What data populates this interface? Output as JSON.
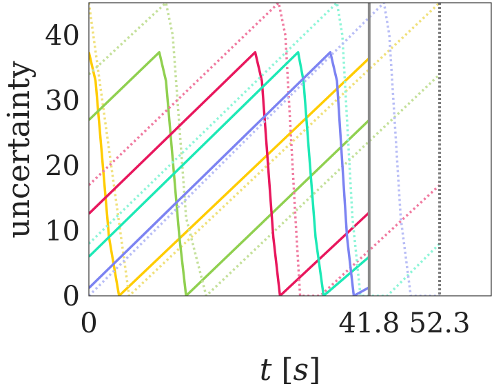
{
  "chart_data": {
    "type": "line",
    "title": "",
    "xlabel_var": "t",
    "xlabel_unit": "s",
    "ylabel": "uncertainty",
    "xlim": [
      0,
      60
    ],
    "ylim": [
      0,
      45
    ],
    "xticks": [
      {
        "value": 0,
        "label": "0"
      },
      {
        "value": 41.8,
        "label": "41.8"
      },
      {
        "value": 52.3,
        "label": "52.3"
      }
    ],
    "yticks": [
      {
        "value": 0,
        "label": "0"
      },
      {
        "value": 10,
        "label": "10"
      },
      {
        "value": 20,
        "label": "20"
      },
      {
        "value": 30,
        "label": "30"
      },
      {
        "value": 40,
        "label": "40"
      }
    ],
    "vlines": [
      {
        "x": 41.8,
        "style": "solid",
        "color": "#8a8a8a"
      },
      {
        "x": 52.3,
        "style": "dotted",
        "color": "#7a7a7a"
      }
    ],
    "series": [
      {
        "color": "#ffcc00",
        "style": "solid",
        "points": [
          [
            0,
            37.4
          ],
          [
            1,
            33
          ],
          [
            3,
            9
          ],
          [
            4.5,
            0
          ],
          [
            41.8,
            36.5
          ]
        ]
      },
      {
        "color": "#f0e07a",
        "style": "dotted",
        "points": [
          [
            0,
            45
          ],
          [
            6,
            0
          ],
          [
            52.3,
            45
          ]
        ]
      },
      {
        "color": "#90d050",
        "style": "solid",
        "points": [
          [
            0,
            27
          ],
          [
            10.5,
            37.4
          ],
          [
            11.5,
            33
          ],
          [
            13.5,
            9
          ],
          [
            14.5,
            0
          ],
          [
            41.8,
            27
          ]
        ]
      },
      {
        "color": "#c4e09a",
        "style": "dotted",
        "points": [
          [
            0,
            34
          ],
          [
            11.5,
            45
          ],
          [
            12.5,
            40
          ],
          [
            14.5,
            12
          ],
          [
            17.5,
            0
          ],
          [
            52.3,
            34
          ]
        ]
      },
      {
        "color": "#e8175d",
        "style": "solid",
        "points": [
          [
            0,
            12.6
          ],
          [
            24.8,
            37.4
          ],
          [
            25.8,
            33
          ],
          [
            27.5,
            9
          ],
          [
            28.5,
            0
          ],
          [
            41.8,
            12.8
          ]
        ]
      },
      {
        "color": "#f07aa0",
        "style": "dotted",
        "points": [
          [
            0,
            17
          ],
          [
            28.3,
            45
          ],
          [
            29.3,
            40
          ],
          [
            30.8,
            12
          ],
          [
            31.5,
            0
          ],
          [
            34.5,
            0
          ],
          [
            52.3,
            17
          ]
        ]
      },
      {
        "color": "#1de9b6",
        "style": "solid",
        "points": [
          [
            0,
            6
          ],
          [
            31.2,
            37.4
          ],
          [
            32,
            33
          ],
          [
            33.8,
            9
          ],
          [
            35,
            0
          ],
          [
            41.8,
            6
          ]
        ]
      },
      {
        "color": "#8ef5d8",
        "style": "dotted",
        "points": [
          [
            0,
            8
          ],
          [
            37,
            45
          ],
          [
            37.8,
            40
          ],
          [
            39.3,
            12
          ],
          [
            40.5,
            0
          ],
          [
            44.5,
            0
          ],
          [
            52.3,
            8
          ]
        ]
      },
      {
        "color": "#7c83f2",
        "style": "solid",
        "points": [
          [
            0,
            1.2
          ],
          [
            36,
            37.4
          ],
          [
            37,
            33
          ],
          [
            38.5,
            9
          ],
          [
            39.5,
            0
          ],
          [
            41.8,
            1.3
          ]
        ]
      },
      {
        "color": "#b8bdf6",
        "style": "dotted",
        "points": [
          [
            0,
            0
          ],
          [
            44,
            45
          ],
          [
            44.8,
            40
          ],
          [
            46.5,
            12
          ],
          [
            48,
            0
          ],
          [
            52.3,
            0
          ]
        ]
      }
    ]
  }
}
